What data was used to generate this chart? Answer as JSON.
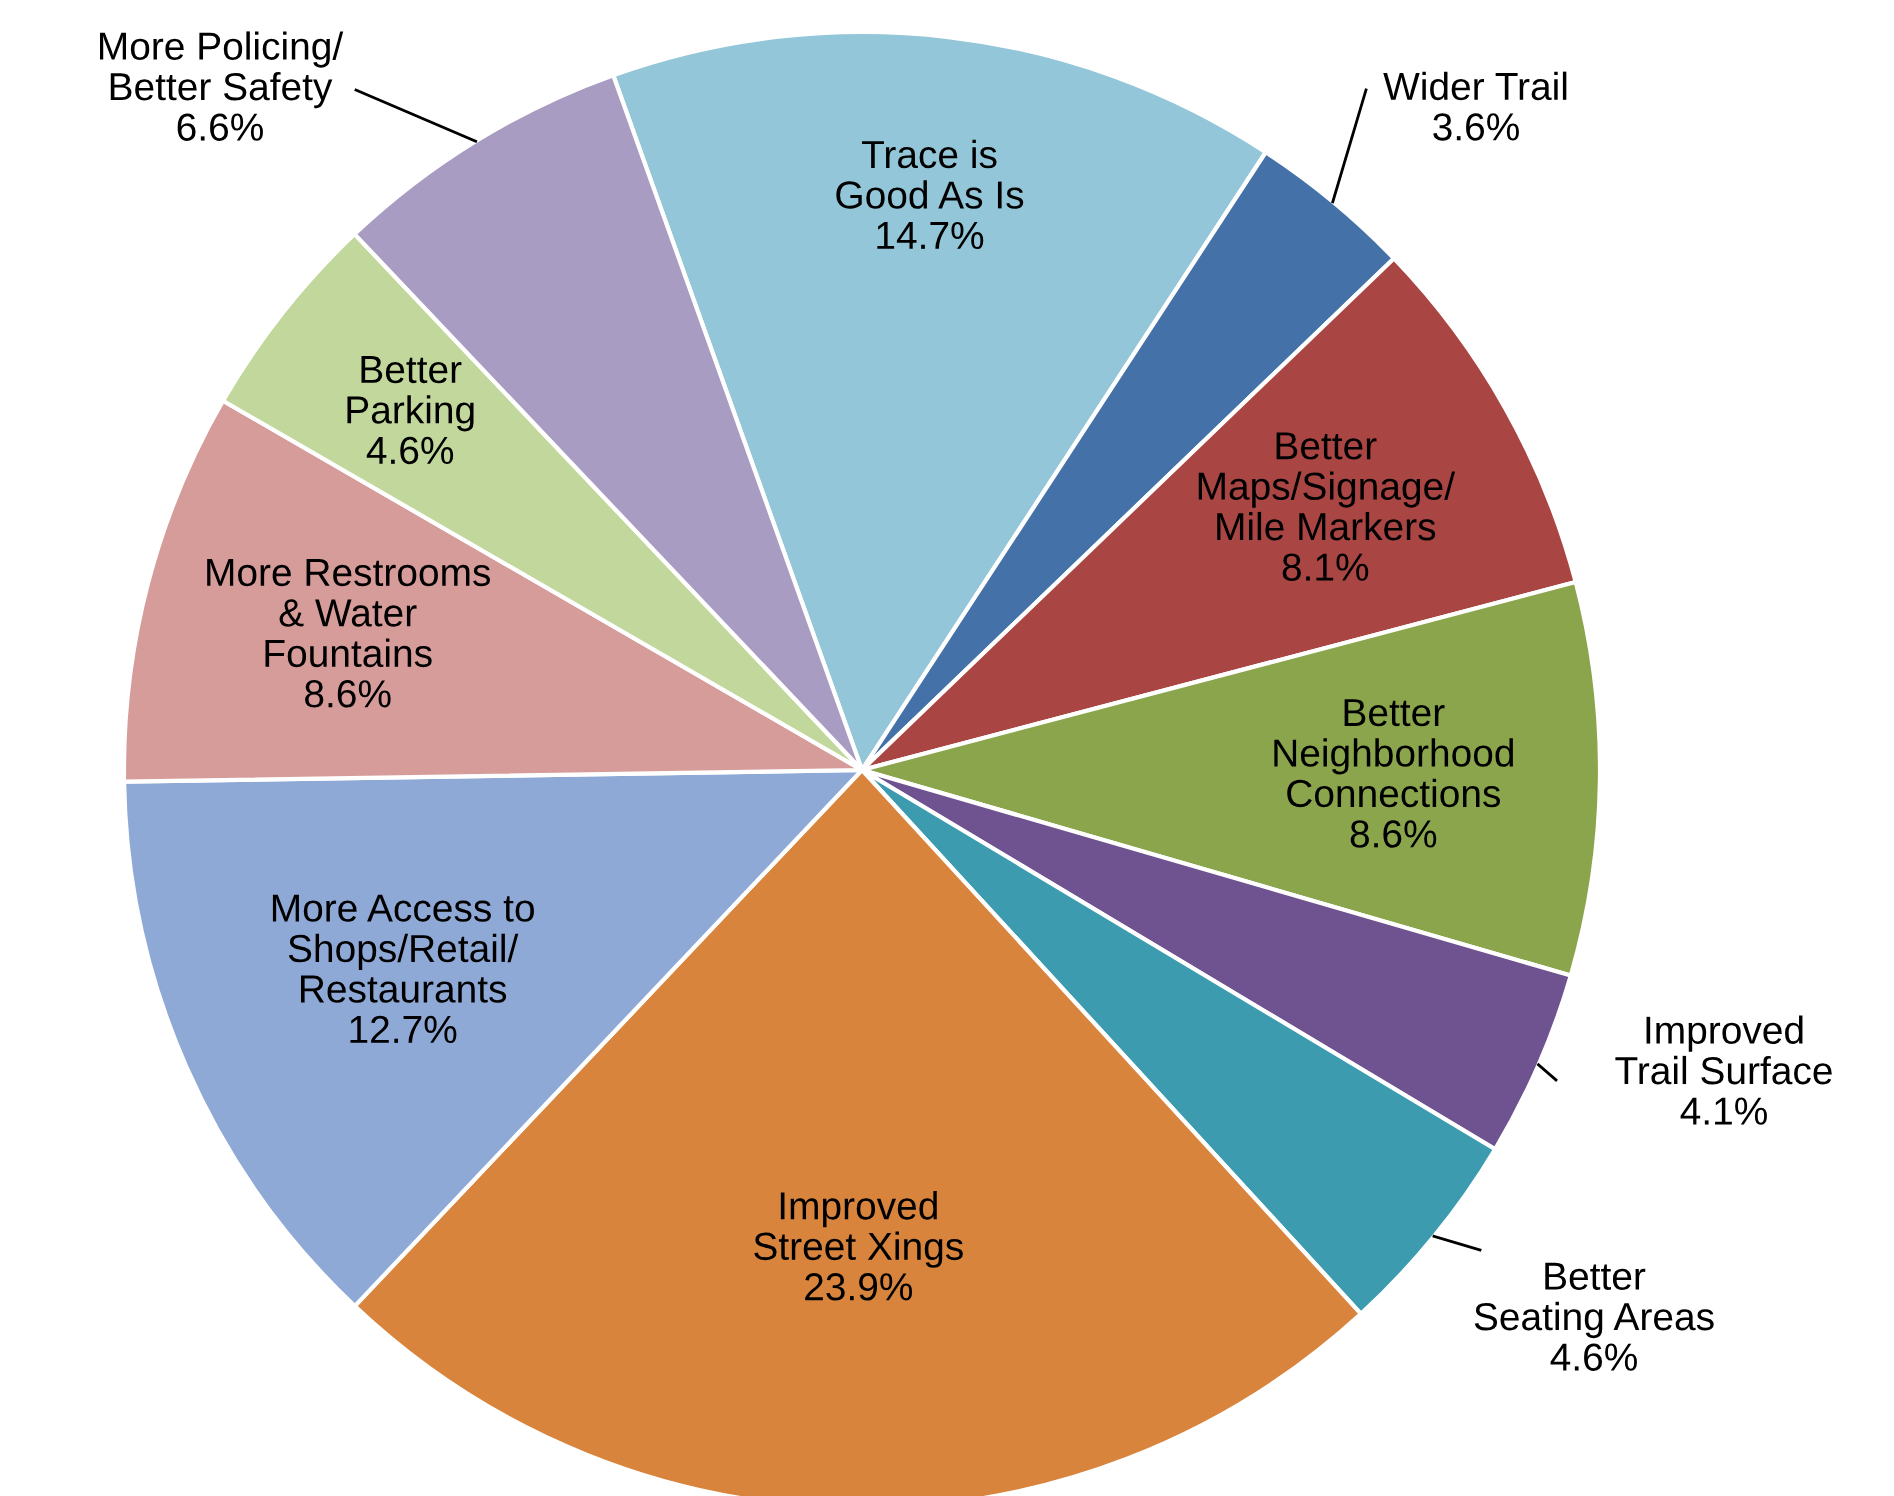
{
  "chart_data": {
    "type": "pie",
    "categories": [
      "Trace is\nGood As Is",
      "Wider Trail",
      "Better\nMaps/Signage/\nMile Markers",
      "Better\nNeighborhood\nConnections",
      "Improved\nTrail Surface",
      "Better\nSeating Areas",
      "Improved\nStreet Xings",
      "More Access to\nShops/Retail/\nRestaurants",
      "More Restrooms\n& Water\nFountains",
      "Better\nParking",
      "More Policing/\nBetter Safety"
    ],
    "values": [
      14.7,
      3.6,
      8.1,
      8.6,
      4.1,
      4.6,
      23.9,
      12.7,
      8.6,
      4.6,
      6.6
    ],
    "value_labels": [
      "14.7%",
      "3.6%",
      "8.1%",
      "8.6%",
      "4.1%",
      "4.6%",
      "23.9%",
      "12.7%",
      "8.6%",
      "4.6%",
      "6.6%"
    ],
    "colors": [
      "#93c6d8",
      "#4472a8",
      "#a94542",
      "#8aa54c",
      "#6f5390",
      "#3d9bb0",
      "#d9843d",
      "#8fa9d6",
      "#d69c9a",
      "#c2d79b",
      "#a89cc2"
    ],
    "legend": false
  }
}
